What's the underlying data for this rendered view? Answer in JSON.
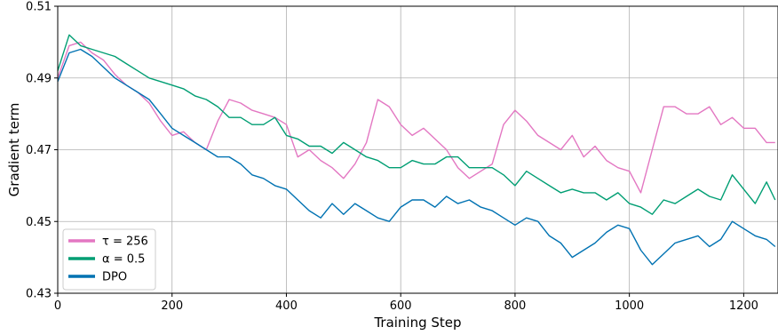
{
  "chart_data": {
    "type": "line",
    "xlabel": "Training Step",
    "ylabel": "Gradient term",
    "xlim": [
      0,
      1260
    ],
    "ylim": [
      0.43,
      0.51
    ],
    "x_ticks": [
      0,
      200,
      400,
      600,
      800,
      1000,
      1200
    ],
    "x_tick_labels": [
      "0",
      "200",
      "400",
      "600",
      "800",
      "1000",
      "1200"
    ],
    "y_ticks": [
      0.43,
      0.45,
      0.47,
      0.49,
      0.51
    ],
    "y_tick_labels": [
      "0.43",
      "0.45",
      "0.47",
      "0.49",
      "0.51"
    ],
    "grid": true,
    "legend_position": "lower-left",
    "series": [
      {
        "name": "τ = 256",
        "color": "#e377c2",
        "x": [
          0,
          20,
          40,
          60,
          80,
          100,
          120,
          140,
          160,
          180,
          200,
          220,
          240,
          260,
          280,
          300,
          320,
          340,
          360,
          380,
          400,
          420,
          440,
          460,
          480,
          500,
          520,
          540,
          560,
          580,
          600,
          620,
          640,
          660,
          680,
          700,
          720,
          740,
          760,
          780,
          800,
          820,
          840,
          860,
          880,
          900,
          920,
          940,
          960,
          980,
          1000,
          1020,
          1040,
          1060,
          1080,
          1100,
          1120,
          1140,
          1160,
          1180,
          1200,
          1220,
          1240,
          1255
        ],
        "y": [
          0.49,
          0.499,
          0.5,
          0.497,
          0.495,
          0.491,
          0.488,
          0.486,
          0.483,
          0.478,
          0.474,
          0.475,
          0.472,
          0.47,
          0.478,
          0.484,
          0.483,
          0.481,
          0.48,
          0.479,
          0.477,
          0.468,
          0.47,
          0.467,
          0.465,
          0.462,
          0.466,
          0.472,
          0.484,
          0.482,
          0.477,
          0.474,
          0.476,
          0.473,
          0.47,
          0.465,
          0.462,
          0.464,
          0.466,
          0.477,
          0.481,
          0.478,
          0.474,
          0.472,
          0.47,
          0.474,
          0.468,
          0.471,
          0.467,
          0.465,
          0.464,
          0.458,
          0.47,
          0.482,
          0.482,
          0.48,
          0.48,
          0.482,
          0.477,
          0.479,
          0.476,
          0.476,
          0.472,
          0.472
        ]
      },
      {
        "name": "α = 0.5",
        "color": "#009e73",
        "x": [
          0,
          20,
          40,
          60,
          80,
          100,
          120,
          140,
          160,
          180,
          200,
          220,
          240,
          260,
          280,
          300,
          320,
          340,
          360,
          380,
          400,
          420,
          440,
          460,
          480,
          500,
          520,
          540,
          560,
          580,
          600,
          620,
          640,
          660,
          680,
          700,
          720,
          740,
          760,
          780,
          800,
          820,
          840,
          860,
          880,
          900,
          920,
          940,
          960,
          980,
          1000,
          1020,
          1040,
          1060,
          1080,
          1100,
          1120,
          1140,
          1160,
          1180,
          1200,
          1220,
          1240,
          1255
        ],
        "y": [
          0.492,
          0.502,
          0.499,
          0.498,
          0.497,
          0.496,
          0.494,
          0.492,
          0.49,
          0.489,
          0.488,
          0.487,
          0.485,
          0.484,
          0.482,
          0.479,
          0.479,
          0.477,
          0.477,
          0.479,
          0.474,
          0.473,
          0.471,
          0.471,
          0.469,
          0.472,
          0.47,
          0.468,
          0.467,
          0.465,
          0.465,
          0.467,
          0.466,
          0.466,
          0.468,
          0.468,
          0.465,
          0.465,
          0.465,
          0.463,
          0.46,
          0.464,
          0.462,
          0.46,
          0.458,
          0.459,
          0.458,
          0.458,
          0.456,
          0.458,
          0.455,
          0.454,
          0.452,
          0.456,
          0.455,
          0.457,
          0.459,
          0.457,
          0.456,
          0.463,
          0.459,
          0.455,
          0.461,
          0.456
        ]
      },
      {
        "name": "DPO",
        "color": "#0072b2",
        "x": [
          0,
          20,
          40,
          60,
          80,
          100,
          120,
          140,
          160,
          180,
          200,
          220,
          240,
          260,
          280,
          300,
          320,
          340,
          360,
          380,
          400,
          420,
          440,
          460,
          480,
          500,
          520,
          540,
          560,
          580,
          600,
          620,
          640,
          660,
          680,
          700,
          720,
          740,
          760,
          780,
          800,
          820,
          840,
          860,
          880,
          900,
          920,
          940,
          960,
          980,
          1000,
          1020,
          1040,
          1060,
          1080,
          1100,
          1120,
          1140,
          1160,
          1180,
          1200,
          1220,
          1240,
          1255
        ],
        "y": [
          0.489,
          0.497,
          0.498,
          0.496,
          0.493,
          0.49,
          0.488,
          0.486,
          0.484,
          0.48,
          0.476,
          0.474,
          0.472,
          0.47,
          0.468,
          0.468,
          0.466,
          0.463,
          0.462,
          0.46,
          0.459,
          0.456,
          0.453,
          0.451,
          0.455,
          0.452,
          0.455,
          0.453,
          0.451,
          0.45,
          0.454,
          0.456,
          0.456,
          0.454,
          0.457,
          0.455,
          0.456,
          0.454,
          0.453,
          0.451,
          0.449,
          0.451,
          0.45,
          0.446,
          0.444,
          0.44,
          0.442,
          0.444,
          0.447,
          0.449,
          0.448,
          0.442,
          0.438,
          0.441,
          0.444,
          0.445,
          0.446,
          0.443,
          0.445,
          0.45,
          0.448,
          0.446,
          0.445,
          0.443
        ]
      }
    ]
  }
}
